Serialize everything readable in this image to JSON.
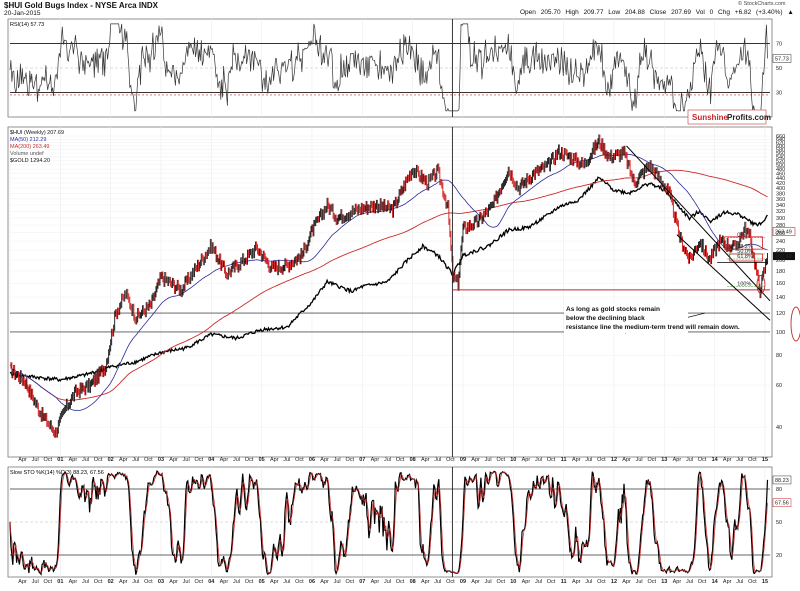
{
  "header": {
    "title": "$HUI Gold Bugs Index - NYSE Arca INDX",
    "date": "20-Jan-2015",
    "ohlc": "Open 205.70 High 209.77 Low 204.88 Close 207.69 Vol 0 Chg +6.82 (+3.40%) ▲",
    "credit": "© StockCharts.com"
  },
  "watermark": {
    "part1": "Sunshine",
    "part2": "Profits.com"
  },
  "annotation": "As long as gold stocks remain below the declining black resistance line the medium-term trend will remain down.",
  "chart_data": [
    {
      "type": "line",
      "panel": "rsi",
      "legend": [
        "RSI(14) 57.73"
      ],
      "last_value": 57.73,
      "levels": [
        70,
        30
      ],
      "y_ticks": [
        70,
        50,
        30
      ],
      "ylim": [
        10,
        90
      ]
    },
    {
      "type": "line",
      "panel": "main",
      "legend": [
        "$HUI (Weekly) 207.69",
        "MA(50) 212.29",
        "MA(200) 263.49",
        "Volume undef",
        "$GOLD 1294.20"
      ],
      "series_colors": {
        "price": "#111111",
        "ma50": "#2b2b9a",
        "ma200": "#cc2a2a",
        "gold": "#000000"
      },
      "last_value": 207.69,
      "y_scale": "log",
      "y_ticks": [
        660,
        640,
        620,
        600,
        580,
        560,
        540,
        520,
        500,
        480,
        460,
        440,
        420,
        400,
        380,
        360,
        340,
        320,
        300,
        280,
        260,
        240,
        220,
        200,
        180,
        160,
        140,
        120,
        100,
        80,
        60,
        40
      ],
      "right_markers": [
        "263.49",
        "207.69"
      ],
      "x_tick_years": [
        "01",
        "02",
        "03",
        "04",
        "05",
        "06",
        "07",
        "08",
        "Oct",
        "09",
        "10",
        "11",
        "12",
        "13",
        "14",
        "15"
      ],
      "fib_labels": [
        "0%",
        "38.2%",
        "50.0%",
        "61.8%",
        "100%"
      ],
      "price_path": [
        [
          2000.0,
          70
        ],
        [
          2000.3,
          62
        ],
        [
          2000.6,
          46
        ],
        [
          2000.9,
          38
        ],
        [
          2001.1,
          48
        ],
        [
          2001.3,
          56
        ],
        [
          2001.6,
          60
        ],
        [
          2001.9,
          72
        ],
        [
          2002.1,
          120
        ],
        [
          2002.3,
          145
        ],
        [
          2002.5,
          115
        ],
        [
          2002.8,
          130
        ],
        [
          2003.0,
          170
        ],
        [
          2003.4,
          150
        ],
        [
          2003.8,
          200
        ],
        [
          2004.0,
          230
        ],
        [
          2004.3,
          175
        ],
        [
          2004.7,
          205
        ],
        [
          2004.9,
          225
        ],
        [
          2005.2,
          185
        ],
        [
          2005.5,
          190
        ],
        [
          2005.8,
          210
        ],
        [
          2006.0,
          265
        ],
        [
          2006.3,
          340
        ],
        [
          2006.5,
          300
        ],
        [
          2006.8,
          320
        ],
        [
          2007.0,
          330
        ],
        [
          2007.3,
          340
        ],
        [
          2007.6,
          325
        ],
        [
          2007.9,
          440
        ],
        [
          2008.0,
          480
        ],
        [
          2008.3,
          420
        ],
        [
          2008.5,
          470
        ],
        [
          2008.7,
          330
        ],
        [
          2008.8,
          170
        ],
        [
          2008.9,
          160
        ],
        [
          2009.0,
          270
        ],
        [
          2009.3,
          290
        ],
        [
          2009.6,
          340
        ],
        [
          2009.9,
          480
        ],
        [
          2010.1,
          400
        ],
        [
          2010.4,
          460
        ],
        [
          2010.7,
          500
        ],
        [
          2010.9,
          570
        ],
        [
          2011.2,
          530
        ],
        [
          2011.4,
          500
        ],
        [
          2011.7,
          630
        ],
        [
          2011.9,
          540
        ],
        [
          2012.2,
          560
        ],
        [
          2012.4,
          420
        ],
        [
          2012.7,
          500
        ],
        [
          2012.9,
          440
        ],
        [
          2013.1,
          380
        ],
        [
          2013.3,
          250
        ],
        [
          2013.5,
          200
        ],
        [
          2013.7,
          240
        ],
        [
          2013.9,
          200
        ],
        [
          2014.1,
          240
        ],
        [
          2014.4,
          225
        ],
        [
          2014.6,
          270
        ],
        [
          2014.7,
          250
        ],
        [
          2014.85,
          170
        ],
        [
          2014.9,
          150
        ],
        [
          2015.05,
          207.69
        ]
      ],
      "gold_path": [
        [
          2000.0,
          280
        ],
        [
          2000.5,
          272
        ],
        [
          2001.0,
          265
        ],
        [
          2001.5,
          278
        ],
        [
          2002.0,
          300
        ],
        [
          2002.5,
          315
        ],
        [
          2003.0,
          345
        ],
        [
          2003.5,
          360
        ],
        [
          2004.0,
          410
        ],
        [
          2004.5,
          395
        ],
        [
          2005.0,
          430
        ],
        [
          2005.5,
          440
        ],
        [
          2006.0,
          560
        ],
        [
          2006.3,
          680
        ],
        [
          2006.8,
          620
        ],
        [
          2007.0,
          650
        ],
        [
          2007.5,
          680
        ],
        [
          2007.9,
          840
        ],
        [
          2008.2,
          960
        ],
        [
          2008.5,
          880
        ],
        [
          2008.8,
          730
        ],
        [
          2009.0,
          880
        ],
        [
          2009.5,
          960
        ],
        [
          2009.9,
          1120
        ],
        [
          2010.3,
          1150
        ],
        [
          2010.7,
          1300
        ],
        [
          2010.9,
          1400
        ],
        [
          2011.3,
          1500
        ],
        [
          2011.7,
          1850
        ],
        [
          2012.0,
          1650
        ],
        [
          2012.3,
          1600
        ],
        [
          2012.7,
          1760
        ],
        [
          2013.0,
          1650
        ],
        [
          2013.3,
          1400
        ],
        [
          2013.5,
          1250
        ],
        [
          2013.7,
          1350
        ],
        [
          2013.9,
          1220
        ],
        [
          2014.2,
          1330
        ],
        [
          2014.5,
          1300
        ],
        [
          2014.8,
          1180
        ],
        [
          2014.95,
          1200
        ],
        [
          2015.05,
          1294.2
        ]
      ]
    },
    {
      "type": "line",
      "panel": "stochastic",
      "legend": [
        "Slow STO %K(14) %D(3) 88.23, 67.56"
      ],
      "k_value": 88.23,
      "d_value": 67.56,
      "levels": [
        80,
        20
      ],
      "y_ticks": [
        80,
        50,
        20
      ],
      "ylim": [
        0,
        100
      ]
    }
  ],
  "time_axis": {
    "start": 2000.0,
    "end": 2015.1,
    "month_labels": [
      "Apr",
      "Jul",
      "Oct"
    ]
  }
}
